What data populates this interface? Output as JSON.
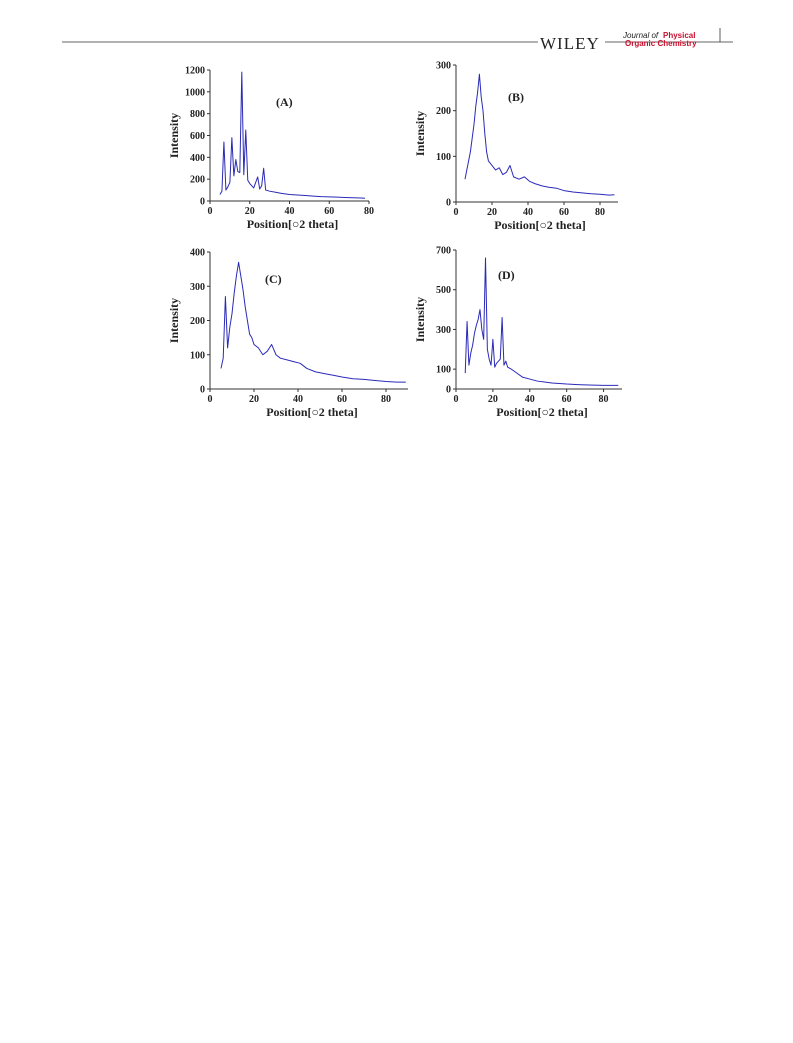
{
  "header": {
    "publisher": "WILEY",
    "journal_prefix": "Journal of",
    "journal_line1": "Physical",
    "journal_line2": "Organic Chemistry"
  },
  "chart_data": [
    {
      "type": "line",
      "annotation": "(A)",
      "x_label": "Position[○2 theta]",
      "y_label": "Intensity",
      "x": [
        5,
        6,
        7,
        8,
        9,
        10,
        11,
        12,
        13,
        14,
        15,
        16,
        17,
        18,
        19,
        20,
        22,
        24,
        25,
        26,
        27,
        28,
        30,
        33,
        36,
        40,
        44,
        48,
        52,
        56,
        60,
        64,
        68,
        72,
        76,
        78
      ],
      "series": [
        {
          "color": "#2a2ab8",
          "values": [
            60,
            90,
            540,
            100,
            130,
            170,
            580,
            230,
            380,
            270,
            260,
            1180,
            240,
            650,
            190,
            160,
            120,
            220,
            110,
            140,
            300,
            100,
            90,
            80,
            70,
            60,
            55,
            50,
            45,
            40,
            38,
            35,
            32,
            30,
            28,
            25
          ]
        }
      ],
      "xlim": [
        0,
        80
      ],
      "xticks": [
        0,
        20,
        40,
        60,
        80
      ],
      "ylim": [
        0,
        1200
      ],
      "yticks": [
        0,
        200,
        400,
        600,
        800,
        1000,
        1200
      ]
    },
    {
      "type": "line",
      "annotation": "(B)",
      "x_label": "Position[○2 theta]",
      "y_label": "Intensity",
      "x": [
        5,
        6,
        7,
        8,
        9,
        10,
        11,
        12,
        13,
        14,
        15,
        16,
        17,
        18,
        19,
        20,
        22,
        24,
        26,
        28,
        30,
        32,
        35,
        38,
        41,
        44,
        48,
        52,
        56,
        60,
        65,
        70,
        75,
        80,
        85,
        88
      ],
      "series": [
        {
          "color": "#2a2ab8",
          "values": [
            50,
            70,
            90,
            110,
            140,
            170,
            210,
            240,
            280,
            230,
            200,
            150,
            110,
            90,
            85,
            80,
            70,
            75,
            60,
            65,
            80,
            55,
            50,
            55,
            45,
            40,
            35,
            32,
            30,
            25,
            22,
            20,
            18,
            17,
            15,
            16
          ]
        }
      ],
      "xlim": [
        0,
        90
      ],
      "xticks": [
        0,
        20,
        40,
        60,
        80
      ],
      "ylim": [
        0,
        300
      ],
      "yticks": [
        0,
        100,
        200,
        300
      ]
    },
    {
      "type": "line",
      "annotation": "(C)",
      "x_label": "Position[○2 theta]",
      "y_label": "Intensity",
      "x": [
        5,
        6,
        7,
        8,
        9,
        10,
        11,
        12,
        13,
        14,
        15,
        16,
        17,
        18,
        19,
        20,
        22,
        24,
        26,
        28,
        30,
        32,
        35,
        38,
        41,
        44,
        48,
        52,
        56,
        60,
        65,
        70,
        75,
        80,
        85,
        89
      ],
      "series": [
        {
          "color": "#2a2ab8",
          "values": [
            60,
            90,
            270,
            120,
            180,
            220,
            280,
            330,
            370,
            330,
            290,
            240,
            200,
            160,
            150,
            130,
            120,
            100,
            110,
            130,
            100,
            90,
            85,
            80,
            75,
            60,
            50,
            45,
            40,
            35,
            30,
            28,
            25,
            22,
            20,
            20
          ]
        }
      ],
      "xlim": [
        0,
        90
      ],
      "xticks": [
        0,
        20,
        40,
        60,
        80
      ],
      "ylim": [
        0,
        400
      ],
      "yticks": [
        0,
        100,
        200,
        300,
        400
      ]
    },
    {
      "type": "line",
      "annotation": "(D)",
      "x_label": "Position[○2 theta]",
      "y_label": "Intensity",
      "x": [
        5,
        6,
        7,
        8,
        9,
        10,
        11,
        12,
        13,
        14,
        15,
        16,
        17,
        18,
        19,
        20,
        21,
        22,
        24,
        25,
        26,
        27,
        28,
        30,
        33,
        36,
        40,
        44,
        48,
        52,
        56,
        60,
        66,
        72,
        80,
        88
      ],
      "series": [
        {
          "color": "#2a2ab8",
          "values": [
            80,
            340,
            120,
            180,
            220,
            280,
            320,
            350,
            400,
            300,
            250,
            660,
            200,
            150,
            120,
            250,
            110,
            130,
            150,
            360,
            120,
            140,
            110,
            100,
            80,
            60,
            50,
            40,
            35,
            30,
            28,
            25,
            22,
            20,
            18,
            18
          ]
        }
      ],
      "xlim": [
        0,
        90
      ],
      "xticks": [
        0,
        20,
        40,
        60,
        80
      ],
      "ylim": [
        0,
        700
      ],
      "yticks": [
        0,
        100,
        300,
        500,
        700
      ]
    }
  ]
}
